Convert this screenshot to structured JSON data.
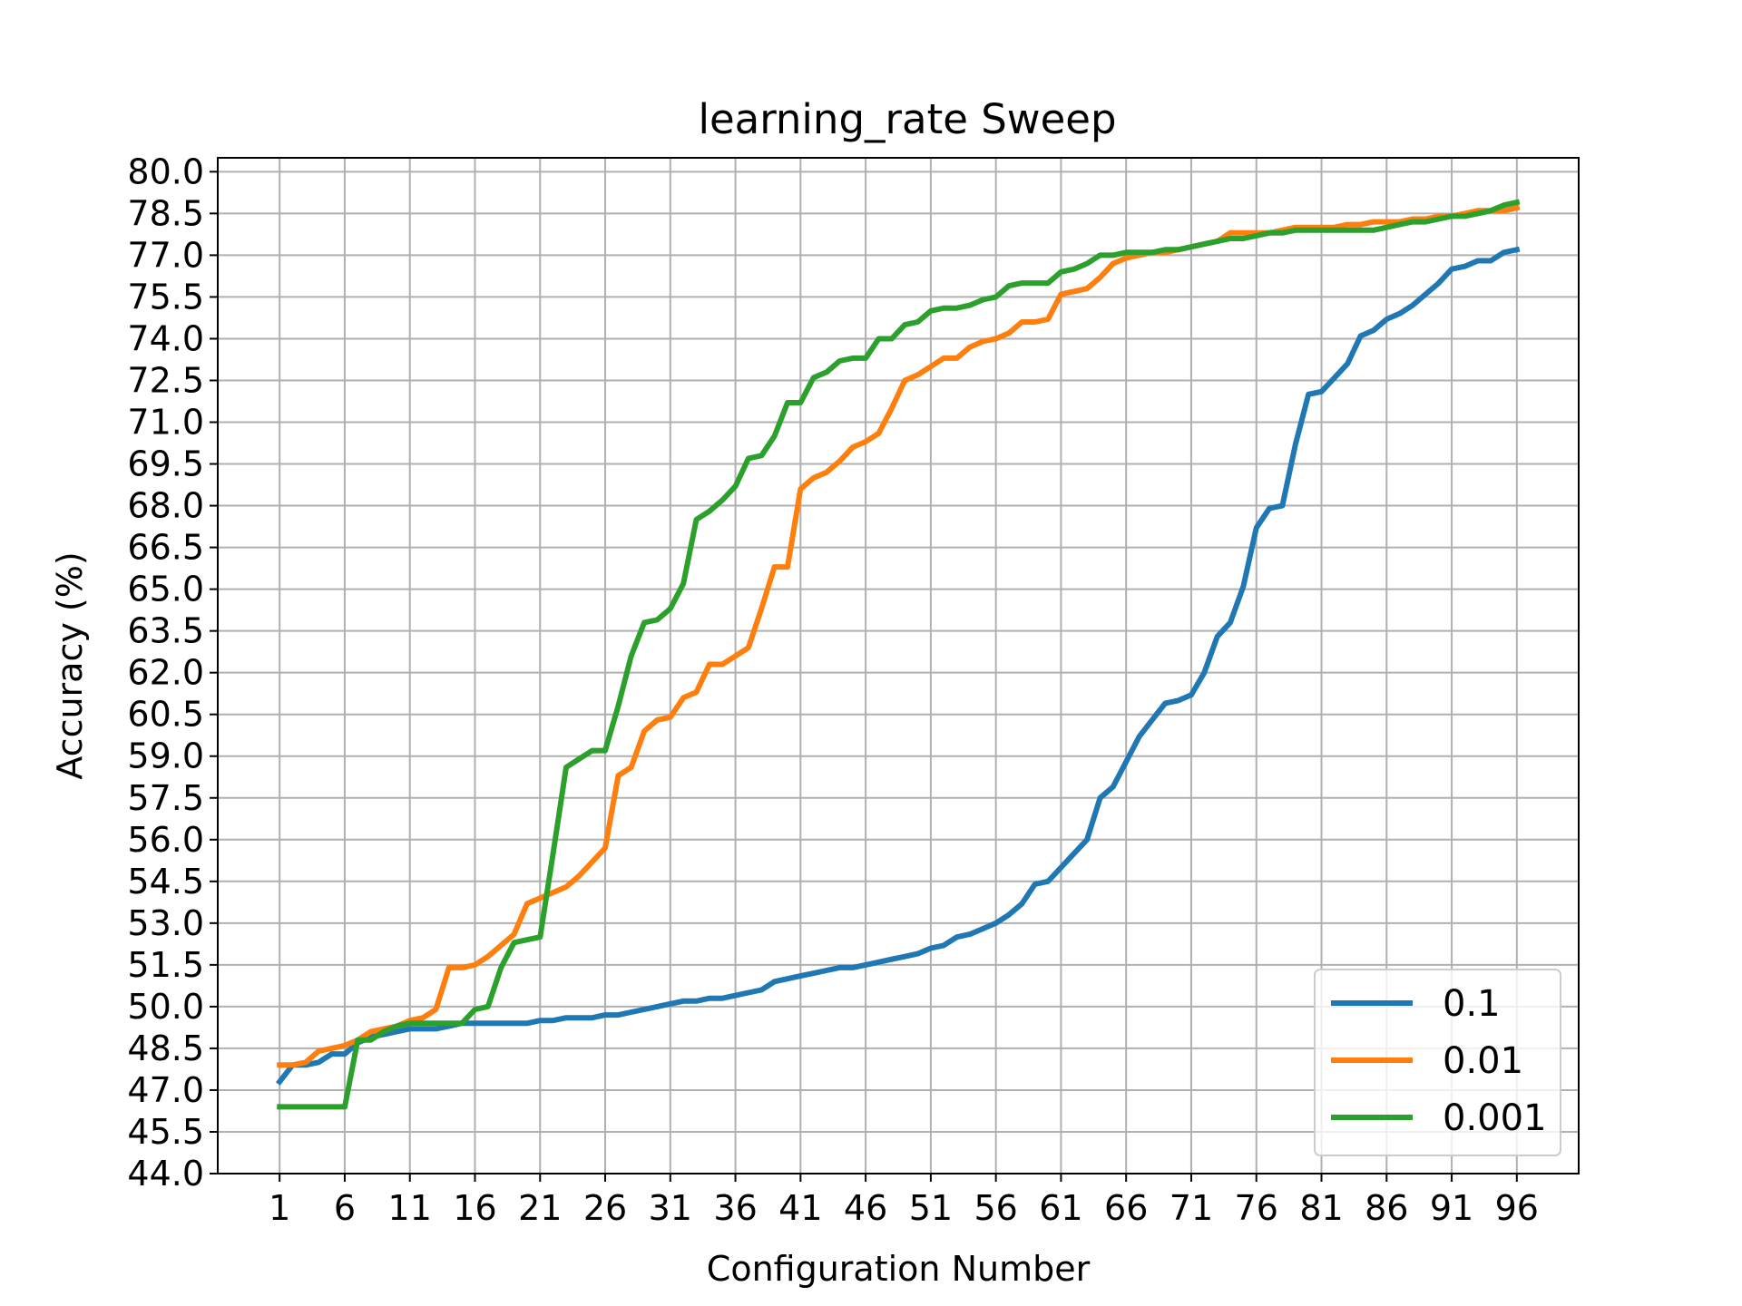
{
  "chart_data": {
    "type": "line",
    "title": "learning_rate Sweep",
    "xlabel": "Configuration Number",
    "ylabel": "Accuracy (%)",
    "xlim": [
      -3.75,
      100.75
    ],
    "ylim": [
      44.0,
      80.5
    ],
    "x_ticks": [
      1,
      6,
      11,
      16,
      21,
      26,
      31,
      36,
      41,
      46,
      51,
      56,
      61,
      66,
      71,
      76,
      81,
      86,
      91,
      96
    ],
    "y_ticks": [
      "44.0",
      "45.5",
      "47.0",
      "48.5",
      "50.0",
      "51.5",
      "53.0",
      "54.5",
      "56.0",
      "57.5",
      "59.0",
      "60.5",
      "62.0",
      "63.5",
      "65.0",
      "66.5",
      "68.0",
      "69.5",
      "71.0",
      "72.5",
      "74.0",
      "75.5",
      "77.0",
      "78.5",
      "80.0"
    ],
    "grid": true,
    "legend_position": "lower-right",
    "x": [
      1,
      2,
      3,
      4,
      5,
      6,
      7,
      8,
      9,
      10,
      11,
      12,
      13,
      14,
      15,
      16,
      17,
      18,
      19,
      20,
      21,
      22,
      23,
      24,
      25,
      26,
      27,
      28,
      29,
      30,
      31,
      32,
      33,
      34,
      35,
      36,
      37,
      38,
      39,
      40,
      41,
      42,
      43,
      44,
      45,
      46,
      47,
      48,
      49,
      50,
      51,
      52,
      53,
      54,
      55,
      56,
      57,
      58,
      59,
      60,
      61,
      62,
      63,
      64,
      65,
      66,
      67,
      68,
      69,
      70,
      71,
      72,
      73,
      74,
      75,
      76,
      77,
      78,
      79,
      80,
      81,
      82,
      83,
      84,
      85,
      86,
      87,
      88,
      89,
      90,
      91,
      92,
      93,
      94,
      95,
      96
    ],
    "series": [
      {
        "name": "0.1",
        "color": "#1f77b4",
        "values": [
          47.3,
          47.9,
          47.9,
          48.0,
          48.3,
          48.3,
          48.7,
          48.9,
          49.0,
          49.1,
          49.2,
          49.2,
          49.2,
          49.3,
          49.4,
          49.4,
          49.4,
          49.4,
          49.4,
          49.4,
          49.5,
          49.5,
          49.6,
          49.6,
          49.6,
          49.7,
          49.7,
          49.8,
          49.9,
          50.0,
          50.1,
          50.2,
          50.2,
          50.3,
          50.3,
          50.4,
          50.5,
          50.6,
          50.9,
          51.0,
          51.1,
          51.2,
          51.3,
          51.4,
          51.4,
          51.5,
          51.6,
          51.7,
          51.8,
          51.9,
          52.1,
          52.2,
          52.5,
          52.6,
          52.8,
          53.0,
          53.3,
          53.7,
          54.4,
          54.5,
          55.0,
          55.5,
          56.0,
          57.5,
          57.9,
          58.8,
          59.7,
          60.3,
          60.9,
          61.0,
          61.2,
          62.0,
          63.3,
          63.8,
          65.1,
          67.2,
          67.9,
          68.0,
          70.2,
          72.0,
          72.1,
          72.6,
          73.1,
          74.1,
          74.3,
          74.7,
          74.9,
          75.2,
          75.6,
          76.0,
          76.5,
          76.6,
          76.8,
          76.8,
          77.1,
          77.2
        ]
      },
      {
        "name": "0.01",
        "color": "#ff7f0e",
        "values": [
          47.9,
          47.9,
          48.0,
          48.4,
          48.5,
          48.6,
          48.8,
          49.1,
          49.2,
          49.3,
          49.5,
          49.6,
          49.9,
          51.4,
          51.4,
          51.5,
          51.8,
          52.2,
          52.6,
          53.7,
          53.9,
          54.1,
          54.3,
          54.7,
          55.2,
          55.7,
          58.3,
          58.6,
          59.9,
          60.3,
          60.4,
          61.1,
          61.3,
          62.3,
          62.3,
          62.6,
          62.9,
          64.3,
          65.8,
          65.8,
          68.6,
          69.0,
          69.2,
          69.6,
          70.1,
          70.3,
          70.6,
          71.5,
          72.5,
          72.7,
          73.0,
          73.3,
          73.3,
          73.7,
          73.9,
          74.0,
          74.2,
          74.6,
          74.6,
          74.7,
          75.6,
          75.7,
          75.8,
          76.2,
          76.7,
          76.9,
          77.0,
          77.1,
          77.1,
          77.2,
          77.3,
          77.4,
          77.5,
          77.8,
          77.8,
          77.8,
          77.8,
          77.9,
          78.0,
          78.0,
          78.0,
          78.0,
          78.1,
          78.1,
          78.2,
          78.2,
          78.2,
          78.3,
          78.3,
          78.4,
          78.4,
          78.5,
          78.6,
          78.6,
          78.6,
          78.7
        ]
      },
      {
        "name": "0.001",
        "color": "#2ca02c",
        "values": [
          46.4,
          46.4,
          46.4,
          46.4,
          46.4,
          46.4,
          48.8,
          48.8,
          49.1,
          49.3,
          49.4,
          49.4,
          49.4,
          49.4,
          49.4,
          49.9,
          50.0,
          51.4,
          52.3,
          52.4,
          52.5,
          55.5,
          58.6,
          58.9,
          59.2,
          59.2,
          60.8,
          62.6,
          63.8,
          63.9,
          64.3,
          65.2,
          67.5,
          67.8,
          68.2,
          68.7,
          69.7,
          69.8,
          70.5,
          71.7,
          71.7,
          72.6,
          72.8,
          73.2,
          73.3,
          73.3,
          74.0,
          74.0,
          74.5,
          74.6,
          75.0,
          75.1,
          75.1,
          75.2,
          75.4,
          75.5,
          75.9,
          76.0,
          76.0,
          76.0,
          76.4,
          76.5,
          76.7,
          77.0,
          77.0,
          77.1,
          77.1,
          77.1,
          77.2,
          77.2,
          77.3,
          77.4,
          77.5,
          77.6,
          77.6,
          77.7,
          77.8,
          77.8,
          77.9,
          77.9,
          77.9,
          77.9,
          77.9,
          77.9,
          77.9,
          78.0,
          78.1,
          78.2,
          78.2,
          78.3,
          78.4,
          78.4,
          78.5,
          78.6,
          78.8,
          78.9
        ]
      }
    ]
  }
}
